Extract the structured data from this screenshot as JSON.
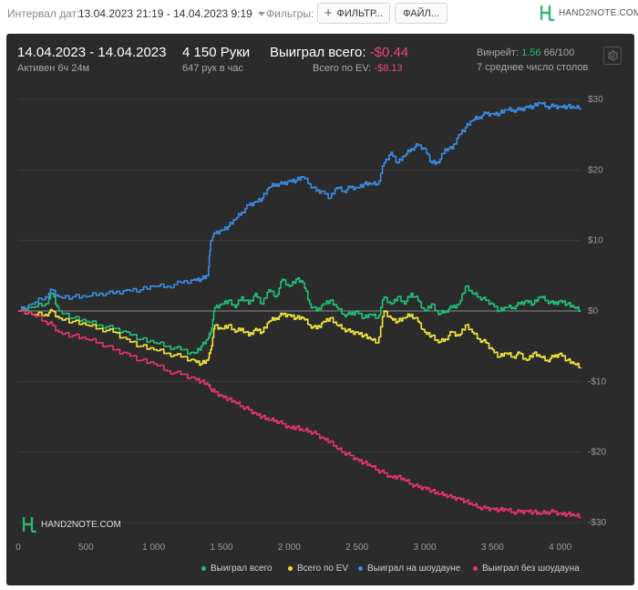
{
  "topbar": {
    "interval_label": "Интервал дат:",
    "interval_value": "13.04.2023 21:19 - 14.04.2023 9:19",
    "filters_label": "Фильтры:",
    "filters_button": "ФИЛЬТР...",
    "file_button": "ФАЙЛ...",
    "logo_text": "HAND2NOTE.COM"
  },
  "summary": {
    "date_range": "14.04.2023 - 14.04.2023",
    "active": "Активен 6ч 24м",
    "hands": "4 150 Руки",
    "hands_per_hour": "647 рук в час",
    "won_total_label": "Выиграл всего:",
    "won_total_value": "-$0.44",
    "ev_label": "Всего по EV:",
    "ev_value": "-$8.13",
    "winrate_label": "Винрейт:",
    "winrate_value": "1.56",
    "winrate_suffix": "66/100",
    "avg_tables": "7 среднее число столов"
  },
  "chart_logo": "HAND2NOTE.COM",
  "colors": {
    "won_total": "#21c278",
    "ev_total": "#f2e93c",
    "showdown": "#3a8ee6",
    "non_showdown": "#e8336f"
  },
  "chart_data": {
    "type": "line",
    "x_ticks": [
      "0",
      "500",
      "1 000",
      "1 500",
      "2 000",
      "2 500",
      "3 000",
      "3 500",
      "4 000"
    ],
    "y_ticks": [
      "$30",
      "$20",
      "$10",
      "$0",
      "-$10",
      "-$20",
      "-$30"
    ],
    "xlim": [
      0,
      4150
    ],
    "ylim": [
      -30,
      30
    ],
    "legend_position": "bottom-right",
    "series": [
      {
        "name": "Выиграл всего",
        "color": "#21c278",
        "x": [
          0,
          100,
          200,
          250,
          300,
          400,
          500,
          600,
          700,
          800,
          900,
          1000,
          1100,
          1200,
          1300,
          1350,
          1400,
          1420,
          1450,
          1500,
          1550,
          1600,
          1650,
          1700,
          1750,
          1800,
          1850,
          1900,
          1950,
          2000,
          2050,
          2100,
          2150,
          2200,
          2250,
          2300,
          2350,
          2400,
          2450,
          2500,
          2550,
          2600,
          2650,
          2700,
          2750,
          2800,
          2850,
          2900,
          2950,
          3000,
          3050,
          3100,
          3150,
          3200,
          3250,
          3300,
          3350,
          3400,
          3450,
          3500,
          3550,
          3600,
          3650,
          3700,
          3750,
          3800,
          3850,
          3900,
          3950,
          4000,
          4050,
          4100,
          4150
        ],
        "y": [
          0,
          0.5,
          1,
          2.5,
          0,
          -1,
          -1.5,
          -2,
          -2.5,
          -3,
          -4,
          -4.5,
          -5,
          -5.5,
          -6,
          -5,
          -4,
          -3,
          0.5,
          1,
          1.5,
          0.5,
          2,
          1,
          2.5,
          1,
          3,
          2,
          4.5,
          3.5,
          4.5,
          4,
          1,
          0,
          1,
          1.5,
          0.5,
          -0.5,
          -0.5,
          0,
          -1,
          -0.5,
          -1,
          2,
          1,
          2,
          1,
          2.5,
          1.5,
          0,
          1,
          -0.5,
          0,
          0.5,
          1,
          3.5,
          2.5,
          2,
          1.5,
          1,
          0,
          0.5,
          0.5,
          1,
          1.5,
          1,
          2,
          1.5,
          1,
          1.5,
          1,
          0.5,
          0
        ]
      },
      {
        "name": "Всего по EV",
        "color": "#f2e93c",
        "x": [
          0,
          100,
          200,
          250,
          300,
          400,
          500,
          600,
          700,
          800,
          900,
          1000,
          1100,
          1200,
          1300,
          1350,
          1400,
          1420,
          1450,
          1500,
          1550,
          1600,
          1650,
          1700,
          1750,
          1800,
          1850,
          1900,
          1950,
          2000,
          2050,
          2100,
          2150,
          2200,
          2250,
          2300,
          2350,
          2400,
          2450,
          2500,
          2550,
          2600,
          2650,
          2700,
          2750,
          2800,
          2850,
          2900,
          2950,
          3000,
          3050,
          3100,
          3150,
          3200,
          3250,
          3300,
          3350,
          3400,
          3450,
          3500,
          3550,
          3600,
          3650,
          3700,
          3750,
          3800,
          3850,
          3900,
          3950,
          4000,
          4050,
          4100,
          4150
        ],
        "y": [
          0,
          -0.5,
          -0.5,
          0,
          -1,
          -1.5,
          -2,
          -2.5,
          -3,
          -4,
          -5,
          -5.5,
          -6,
          -6.5,
          -7,
          -7.5,
          -7,
          -5.5,
          -2,
          -2.5,
          -2,
          -3,
          -2.5,
          -3.5,
          -2.5,
          -3,
          -1.5,
          -1,
          -0.5,
          -0.5,
          -1,
          -1,
          -2,
          -2.5,
          -1.5,
          -1,
          -2,
          -2.5,
          -3,
          -3,
          -3.5,
          -4,
          -4.5,
          0,
          -1,
          -1.5,
          -1,
          -0.5,
          -1.5,
          -3,
          -3.5,
          -4.5,
          -4,
          -3,
          -3.5,
          -2,
          -3,
          -4,
          -4.5,
          -5.5,
          -6.5,
          -6,
          -6.5,
          -6,
          -7,
          -6,
          -6.5,
          -7,
          -6.5,
          -6,
          -7,
          -7.5,
          -8
        ]
      },
      {
        "name": "Выиграл на шоудауне",
        "color": "#3a8ee6",
        "x": [
          0,
          100,
          200,
          250,
          300,
          400,
          500,
          600,
          700,
          800,
          900,
          1000,
          1100,
          1200,
          1300,
          1350,
          1400,
          1420,
          1450,
          1500,
          1550,
          1600,
          1650,
          1700,
          1750,
          1800,
          1850,
          1900,
          1950,
          2000,
          2050,
          2100,
          2150,
          2200,
          2250,
          2300,
          2350,
          2400,
          2450,
          2500,
          2550,
          2600,
          2650,
          2700,
          2750,
          2800,
          2850,
          2900,
          2950,
          3000,
          3050,
          3100,
          3150,
          3200,
          3250,
          3300,
          3350,
          3400,
          3450,
          3500,
          3550,
          3600,
          3650,
          3700,
          3750,
          3800,
          3850,
          3900,
          3950,
          4000,
          4050,
          4100,
          4150
        ],
        "y": [
          0,
          1,
          2,
          3,
          2,
          2,
          2,
          2.5,
          2.5,
          3,
          3,
          3.5,
          3.5,
          4,
          4.5,
          4.5,
          5,
          10,
          11,
          11.5,
          12,
          13,
          14,
          15,
          15.5,
          16,
          17.5,
          18,
          18,
          18.5,
          18.5,
          19,
          18,
          17,
          17,
          16,
          17.5,
          17,
          17.5,
          17.5,
          18,
          18,
          18,
          21,
          22.5,
          21,
          22,
          23,
          23.5,
          23,
          21,
          21,
          23,
          23,
          25,
          26,
          27,
          27.5,
          28,
          28,
          28,
          28.5,
          28.5,
          28.5,
          29,
          29,
          29.5,
          29,
          29,
          29,
          29,
          28.8,
          28.8
        ]
      },
      {
        "name": "Выиграл без шоудауна",
        "color": "#e8336f",
        "x": [
          0,
          100,
          200,
          250,
          300,
          400,
          500,
          600,
          700,
          800,
          900,
          1000,
          1100,
          1200,
          1300,
          1350,
          1400,
          1420,
          1450,
          1500,
          1550,
          1600,
          1650,
          1700,
          1750,
          1800,
          1850,
          1900,
          1950,
          2000,
          2050,
          2100,
          2150,
          2200,
          2250,
          2300,
          2350,
          2400,
          2450,
          2500,
          2550,
          2600,
          2650,
          2700,
          2750,
          2800,
          2850,
          2900,
          2950,
          3000,
          3050,
          3100,
          3150,
          3200,
          3250,
          3300,
          3350,
          3400,
          3450,
          3500,
          3550,
          3600,
          3650,
          3700,
          3750,
          3800,
          3850,
          3900,
          3950,
          4000,
          4050,
          4100,
          4150
        ],
        "y": [
          0,
          -0.5,
          -1.5,
          -2,
          -3,
          -3.5,
          -4,
          -4.5,
          -5.5,
          -6,
          -7,
          -7.5,
          -8.5,
          -9,
          -9.5,
          -10,
          -10.5,
          -11,
          -11.5,
          -12,
          -12.5,
          -13,
          -13.5,
          -14,
          -14.5,
          -15,
          -15.5,
          -15.5,
          -16,
          -16.5,
          -16.5,
          -17,
          -17,
          -17.5,
          -18,
          -18.5,
          -19.5,
          -20,
          -20.5,
          -21,
          -21.5,
          -22,
          -22.5,
          -23,
          -23.5,
          -23.5,
          -24,
          -24.5,
          -25,
          -25,
          -25.5,
          -26,
          -26,
          -26.5,
          -26.5,
          -27,
          -27.5,
          -27.8,
          -28,
          -28,
          -28.2,
          -28.2,
          -28.5,
          -28.5,
          -28.3,
          -28.5,
          -28.8,
          -28.5,
          -28.5,
          -28.7,
          -28.8,
          -29,
          -29.2
        ]
      }
    ]
  }
}
